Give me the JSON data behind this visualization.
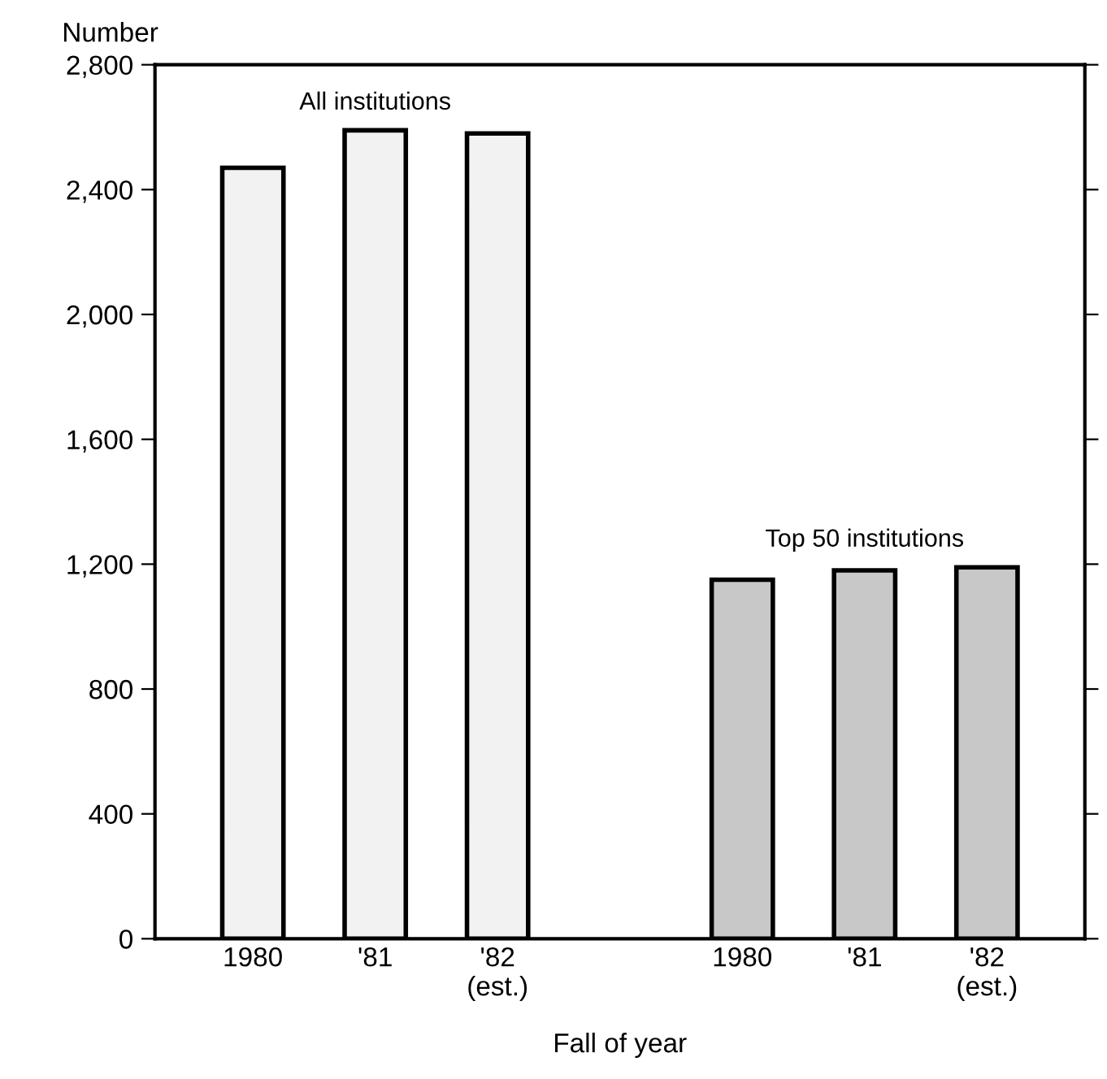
{
  "chart_data": {
    "type": "bar",
    "ylabel": "Number",
    "xlabel": "Fall of year",
    "categories": [
      "1980",
      "'81",
      "'82\n(est.)",
      null,
      "1980",
      "'81",
      "'82\n(est.)"
    ],
    "values": [
      2470,
      2590,
      2580,
      null,
      1150,
      1180,
      1190
    ],
    "colors": [
      "#f2f2f2",
      "#f2f2f2",
      "#f2f2f2",
      null,
      "#c8c8c8",
      "#c8c8c8",
      "#c8c8c8"
    ],
    "ylim": [
      0,
      2800
    ],
    "yticks": [
      0,
      400,
      800,
      {
        "value": 1200,
        "label": "1,200"
      },
      {
        "value": 1600,
        "label": "1,600"
      },
      {
        "value": 2000,
        "label": "2,000"
      },
      {
        "value": 2400,
        "label": "2,400"
      },
      {
        "value": 2800,
        "label": "2,800"
      }
    ],
    "annotations": [
      "All institutions",
      "Top 50 institutions"
    ],
    "grid": false,
    "legend": false
  }
}
